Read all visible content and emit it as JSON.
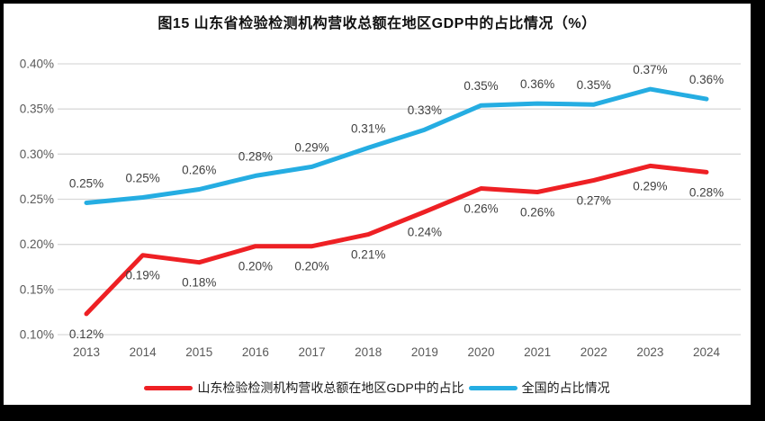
{
  "window": {
    "border_color": "#000000",
    "background": "#ffffff"
  },
  "title": "图15  山东省检验检测机构营收总额在地区GDP中的占比情况（%）",
  "chart_data": {
    "type": "line",
    "title": "图15  山东省检验检测机构营收总额在地区GDP中的占比情况（%）",
    "categories": [
      "2013",
      "2014",
      "2015",
      "2016",
      "2017",
      "2018",
      "2019",
      "2020",
      "2021",
      "2022",
      "2023",
      "2024"
    ],
    "series": [
      {
        "name": "山东检验检测机构营收总额在地区GDP中的占比",
        "color": "#ee2024",
        "values": [
          0.12,
          0.19,
          0.18,
          0.2,
          0.2,
          0.21,
          0.24,
          0.26,
          0.26,
          0.27,
          0.29,
          0.28
        ],
        "labels": [
          "0.12%",
          "0.19%",
          "0.18%",
          "0.20%",
          "0.20%",
          "0.21%",
          "0.24%",
          "0.26%",
          "0.26%",
          "0.27%",
          "0.29%",
          "0.28%"
        ],
        "plot_values": [
          0.123,
          0.188,
          0.18,
          0.198,
          0.198,
          0.211,
          0.236,
          0.262,
          0.258,
          0.271,
          0.287,
          0.28
        ],
        "label_position": "below"
      },
      {
        "name": "全国的占比情况",
        "color": "#25ade2",
        "values": [
          0.25,
          0.25,
          0.26,
          0.28,
          0.29,
          0.31,
          0.33,
          0.35,
          0.36,
          0.35,
          0.37,
          0.36
        ],
        "labels": [
          "0.25%",
          "0.25%",
          "0.26%",
          "0.28%",
          "0.29%",
          "0.31%",
          "0.33%",
          "0.35%",
          "0.36%",
          "0.35%",
          "0.37%",
          "0.36%"
        ],
        "plot_values": [
          0.246,
          0.252,
          0.261,
          0.276,
          0.286,
          0.307,
          0.327,
          0.354,
          0.356,
          0.355,
          0.372,
          0.361
        ],
        "label_position": "above"
      }
    ],
    "ylim": [
      0.1,
      0.4
    ],
    "ytick_step": 0.05,
    "yticks": [
      "0.40%",
      "0.35%",
      "0.30%",
      "0.25%",
      "0.20%",
      "0.15%",
      "0.10%"
    ],
    "unit": "%",
    "grid": true,
    "legend_position": "bottom"
  },
  "colors": {
    "grid": "#d9d9d9",
    "axis_text": "#595959",
    "data_label_text": "#3f3f3f",
    "title_text": "#111111"
  }
}
